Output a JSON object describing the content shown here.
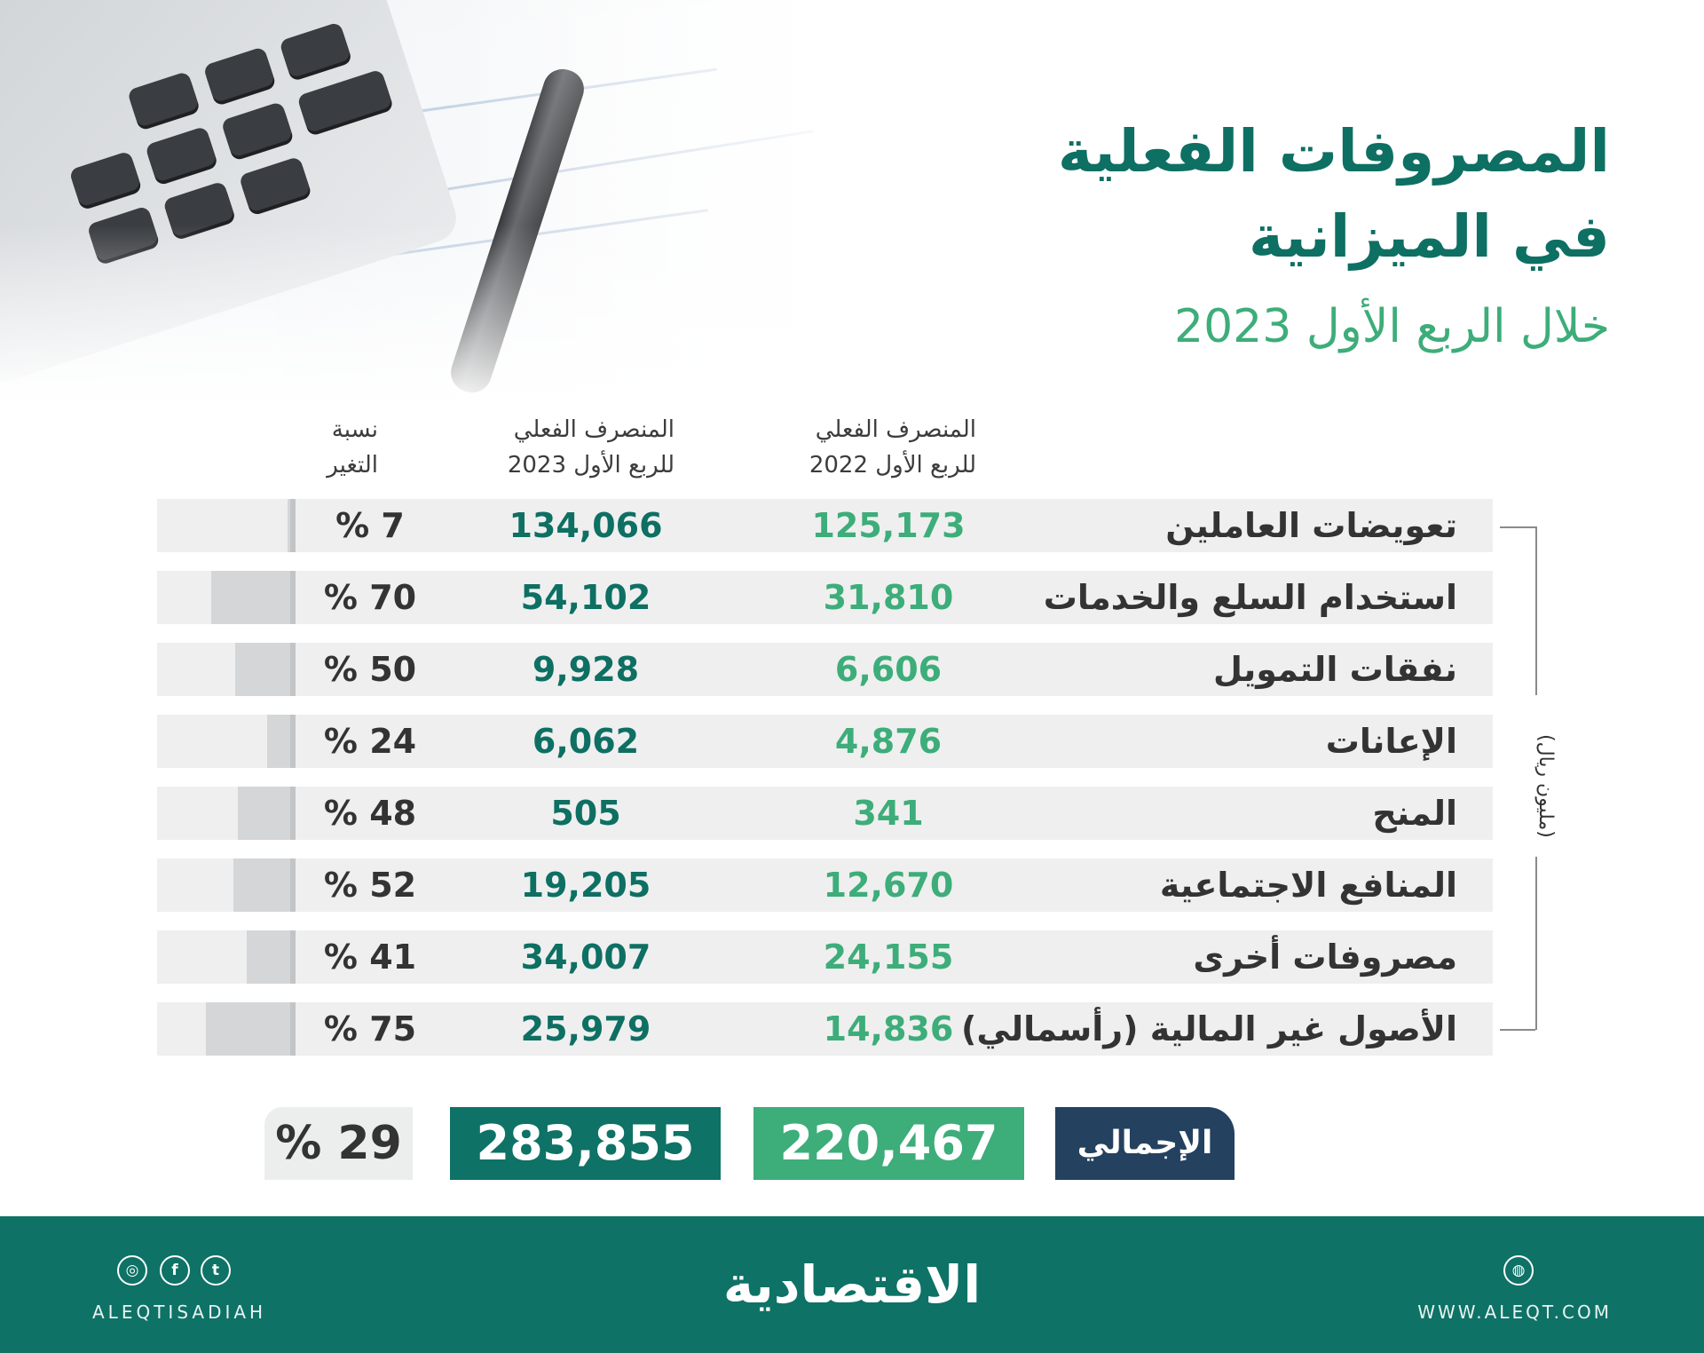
{
  "title": {
    "line1": "المصروفات الفعلية",
    "line2": "في الميزانية",
    "subtitle": "خلال الربع الأول 2023"
  },
  "columns": {
    "q1_2022": [
      "المنصرف الفعلي",
      "للربع الأول 2022"
    ],
    "q1_2023": [
      "المنصرف الفعلي",
      "للربع الأول 2023"
    ],
    "change": [
      "نسبة",
      "التغير"
    ]
  },
  "unit": "(مليون ريال)",
  "rows": [
    {
      "label": "تعويضات العاملين",
      "v2022": "125,173",
      "v2023": "134,066",
      "change": "% 7",
      "change_pct": 7
    },
    {
      "label": "استخدام السلع والخدمات",
      "v2022": "31,810",
      "v2023": "54,102",
      "change": "% 70",
      "change_pct": 70
    },
    {
      "label": "نفقات التمويل",
      "v2022": "6,606",
      "v2023": "9,928",
      "change": "% 50",
      "change_pct": 50
    },
    {
      "label": "الإعانات",
      "v2022": "4,876",
      "v2023": "6,062",
      "change": "% 24",
      "change_pct": 24
    },
    {
      "label": "المنح",
      "v2022": "341",
      "v2023": "505",
      "change": "% 48",
      "change_pct": 48
    },
    {
      "label": "المنافع الاجتماعية",
      "v2022": "12,670",
      "v2023": "19,205",
      "change": "% 52",
      "change_pct": 52
    },
    {
      "label": "مصروفات أخرى",
      "v2022": "24,155",
      "v2023": "34,007",
      "change": "% 41",
      "change_pct": 41
    },
    {
      "label": "الأصول غير المالية  (رأسمالي)",
      "v2022": "14,836",
      "v2023": "25,979",
      "change": "% 75",
      "change_pct": 75
    }
  ],
  "total": {
    "label": "الإجمالي",
    "v2022": "220,467",
    "v2023": "283,855",
    "change": "% 29"
  },
  "footer": {
    "logo": "الاقتصادية",
    "handle": "ALEQTISADIAH",
    "website": "WWW.ALEQT.COM",
    "social_icons": [
      "instagram-icon",
      "facebook-icon",
      "twitter-icon"
    ],
    "web_icon": "globe-icon"
  },
  "colors": {
    "dark_green": "#0e7266",
    "light_green": "#3dad7a",
    "navy": "#24415f",
    "row_bg": "#efefef",
    "bar": "#d4d6d8"
  }
}
